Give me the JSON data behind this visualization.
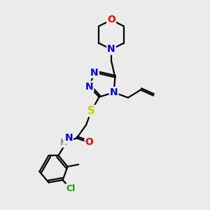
{
  "background_color": "#ebebeb",
  "atom_colors": {
    "C": "#000000",
    "N": "#0000ee",
    "O": "#ff0000",
    "S": "#cccc00",
    "H": "#888888",
    "Cl": "#00aa00"
  },
  "bond_color": "#000000",
  "figsize": [
    3.0,
    3.0
  ],
  "dpi": 100
}
